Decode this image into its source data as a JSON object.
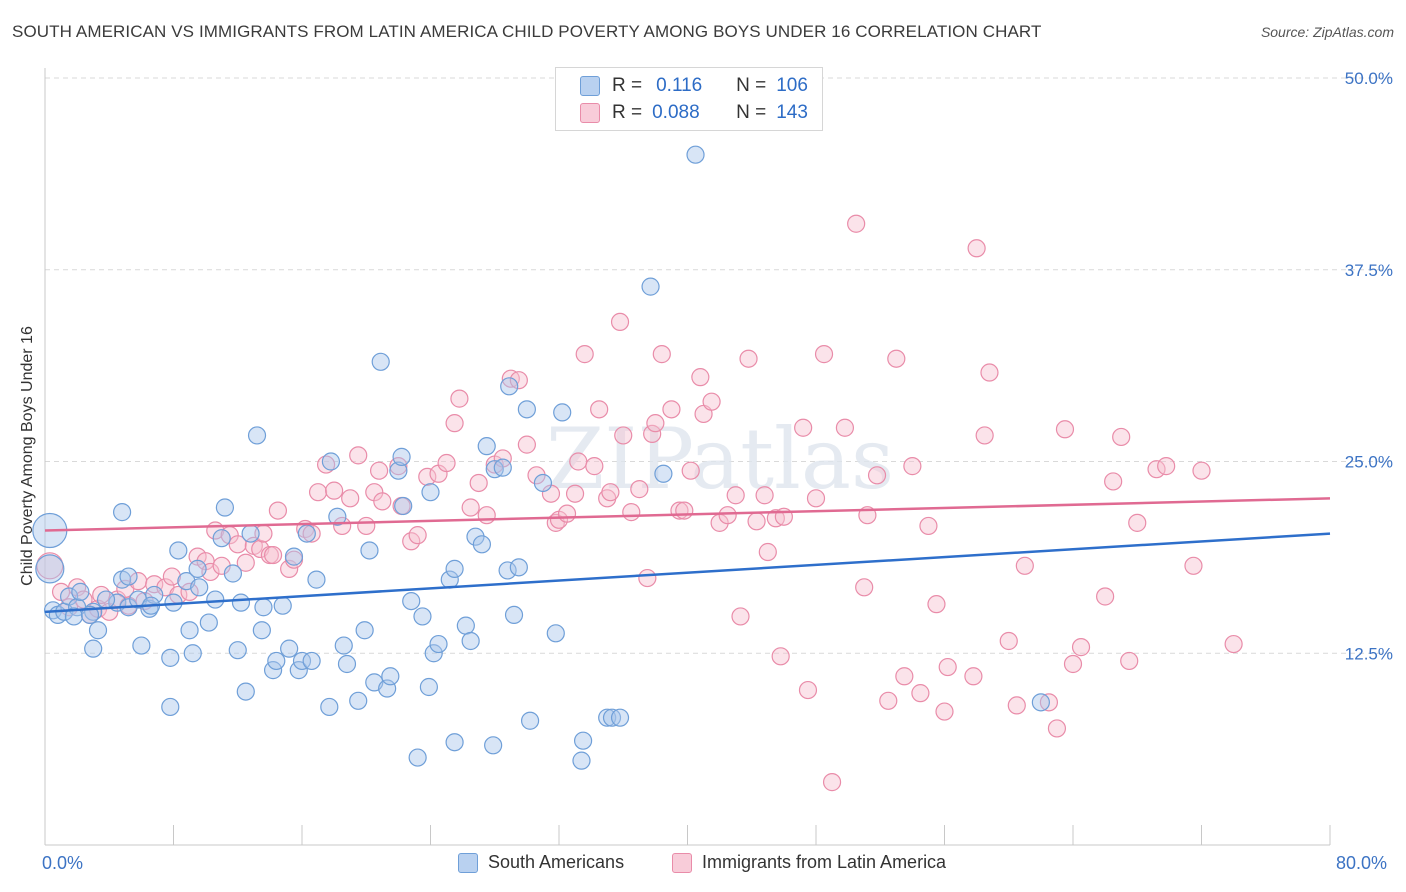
{
  "title": "SOUTH AMERICAN VS IMMIGRANTS FROM LATIN AMERICA CHILD POVERTY AMONG BOYS UNDER 16 CORRELATION CHART",
  "source": "Source: ZipAtlas.com",
  "watermark": "ZIPatlas",
  "colors": {
    "blue_fill": "#a9c6ec",
    "blue_stroke": "#6f9fd8",
    "blue_line": "#2e6fcb",
    "pink_fill": "#f6c1d1",
    "pink_stroke": "#e98ca9",
    "pink_line": "#e06a92",
    "tick_label": "#3c73c4",
    "grid": "#d9d9d9"
  },
  "legend": {
    "rows": [
      {
        "r_label": "R =",
        "r_value": "0.116",
        "n_label": "N =",
        "n_value": "106"
      },
      {
        "r_label": "R =",
        "r_value": "0.088",
        "n_label": "N =",
        "n_value": "143"
      }
    ]
  },
  "bottom_legend": {
    "series1": "South Americans",
    "series2": "Immigrants from Latin America"
  },
  "chart_data": {
    "type": "scatter",
    "title": "SOUTH AMERICAN VS IMMIGRANTS FROM LATIN AMERICA CHILD POVERTY AMONG BOYS UNDER 16 CORRELATION CHART",
    "xlabel": "",
    "ylabel": "Child Poverty Among Boys Under 16",
    "xlim": [
      0,
      80
    ],
    "ylim": [
      0,
      50
    ],
    "x_tick_labels": [
      "0.0%",
      "80.0%"
    ],
    "y_ticks": [
      12.5,
      25.0,
      37.5,
      50.0
    ],
    "y_tick_labels": [
      "12.5%",
      "25.0%",
      "37.5%",
      "50.0%"
    ],
    "grid": "horizontal dashed",
    "legend_placement": "top-center",
    "series": [
      {
        "name": "South Americans",
        "trend": [
          [
            0,
            15.2
          ],
          [
            80,
            20.3
          ]
        ],
        "points": [
          [
            0.3,
            20.5
          ],
          [
            0.3,
            18.0
          ],
          [
            0.5,
            15.3
          ],
          [
            0.8,
            15.0
          ],
          [
            1.2,
            15.2
          ],
          [
            1.5,
            16.2
          ],
          [
            2.0,
            15.5
          ],
          [
            1.8,
            14.9
          ],
          [
            2.2,
            16.5
          ],
          [
            3.0,
            15.2
          ],
          [
            3.3,
            14.0
          ],
          [
            3.0,
            12.8
          ],
          [
            4.5,
            15.8
          ],
          [
            4.8,
            17.3
          ],
          [
            5.2,
            15.5
          ],
          [
            6.0,
            13.0
          ],
          [
            5.8,
            16.0
          ],
          [
            6.5,
            15.4
          ],
          [
            6.8,
            16.3
          ],
          [
            4.8,
            21.7
          ],
          [
            8.3,
            19.2
          ],
          [
            8.8,
            17.2
          ],
          [
            9.6,
            16.8
          ],
          [
            9.0,
            14.0
          ],
          [
            9.2,
            12.5
          ],
          [
            7.8,
            12.2
          ],
          [
            7.8,
            9.0
          ],
          [
            10.2,
            14.5
          ],
          [
            10.6,
            16.0
          ],
          [
            11.0,
            20.0
          ],
          [
            11.2,
            22.0
          ],
          [
            11.7,
            17.7
          ],
          [
            12.2,
            15.8
          ],
          [
            12.0,
            12.7
          ],
          [
            12.5,
            10.0
          ],
          [
            12.8,
            20.3
          ],
          [
            13.2,
            26.7
          ],
          [
            13.5,
            14.0
          ],
          [
            13.6,
            15.5
          ],
          [
            14.2,
            11.4
          ],
          [
            14.4,
            12.0
          ],
          [
            14.8,
            15.6
          ],
          [
            15.2,
            12.8
          ],
          [
            15.8,
            11.4
          ],
          [
            16.0,
            12.0
          ],
          [
            16.6,
            12.0
          ],
          [
            15.5,
            18.8
          ],
          [
            16.3,
            20.3
          ],
          [
            16.9,
            17.3
          ],
          [
            17.7,
            9.0
          ],
          [
            17.8,
            25.0
          ],
          [
            18.2,
            21.4
          ],
          [
            18.6,
            13.0
          ],
          [
            18.8,
            11.8
          ],
          [
            19.5,
            9.4
          ],
          [
            19.9,
            14.0
          ],
          [
            20.2,
            19.2
          ],
          [
            20.5,
            10.6
          ],
          [
            20.9,
            31.5
          ],
          [
            21.3,
            10.2
          ],
          [
            21.5,
            11.0
          ],
          [
            22.0,
            24.4
          ],
          [
            22.2,
            25.3
          ],
          [
            22.3,
            22.1
          ],
          [
            22.8,
            15.9
          ],
          [
            23.2,
            5.7
          ],
          [
            23.5,
            14.9
          ],
          [
            23.9,
            10.3
          ],
          [
            24.0,
            23.0
          ],
          [
            24.2,
            12.5
          ],
          [
            24.5,
            13.1
          ],
          [
            25.5,
            6.7
          ],
          [
            25.2,
            17.3
          ],
          [
            25.5,
            18.0
          ],
          [
            26.2,
            14.3
          ],
          [
            26.5,
            13.3
          ],
          [
            26.8,
            20.1
          ],
          [
            27.2,
            19.6
          ],
          [
            27.5,
            26.0
          ],
          [
            27.9,
            6.5
          ],
          [
            28.0,
            24.5
          ],
          [
            28.5,
            24.6
          ],
          [
            28.8,
            17.9
          ],
          [
            28.9,
            29.9
          ],
          [
            29.2,
            15.0
          ],
          [
            29.5,
            18.1
          ],
          [
            30.2,
            8.1
          ],
          [
            30.0,
            28.4
          ],
          [
            31.0,
            23.6
          ],
          [
            31.8,
            13.8
          ],
          [
            32.2,
            28.2
          ],
          [
            33.5,
            6.8
          ],
          [
            33.4,
            5.5
          ],
          [
            35.0,
            8.3
          ],
          [
            35.3,
            8.3
          ],
          [
            35.8,
            8.3
          ],
          [
            38.5,
            24.2
          ],
          [
            40.5,
            45.0
          ],
          [
            37.7,
            36.4
          ],
          [
            62.0,
            9.3
          ],
          [
            5.2,
            17.5
          ],
          [
            9.5,
            18.0
          ],
          [
            8.0,
            15.8
          ],
          [
            3.8,
            16.0
          ],
          [
            2.8,
            15.0
          ],
          [
            6.6,
            15.6
          ]
        ]
      },
      {
        "name": "Immigrants from Latin America",
        "trend": [
          [
            0,
            20.5
          ],
          [
            80,
            22.6
          ]
        ],
        "points": [
          [
            0.3,
            18.2
          ],
          [
            1.0,
            16.5
          ],
          [
            1.5,
            15.5
          ],
          [
            2.0,
            16.8
          ],
          [
            2.4,
            16.0
          ],
          [
            2.8,
            15.0
          ],
          [
            3.3,
            15.4
          ],
          [
            3.5,
            16.3
          ],
          [
            4.0,
            15.2
          ],
          [
            4.5,
            16.0
          ],
          [
            5.0,
            16.7
          ],
          [
            5.2,
            15.6
          ],
          [
            5.8,
            17.2
          ],
          [
            6.2,
            15.9
          ],
          [
            6.8,
            17.0
          ],
          [
            7.5,
            16.8
          ],
          [
            7.9,
            17.5
          ],
          [
            8.3,
            16.3
          ],
          [
            9.0,
            16.5
          ],
          [
            9.5,
            18.8
          ],
          [
            10.0,
            18.5
          ],
          [
            10.3,
            17.8
          ],
          [
            10.6,
            20.5
          ],
          [
            11.0,
            18.2
          ],
          [
            11.5,
            20.2
          ],
          [
            12.0,
            19.6
          ],
          [
            12.5,
            18.4
          ],
          [
            13.0,
            19.5
          ],
          [
            13.4,
            19.3
          ],
          [
            13.6,
            20.3
          ],
          [
            14.0,
            18.9
          ],
          [
            14.2,
            18.9
          ],
          [
            14.5,
            21.8
          ],
          [
            15.2,
            18.0
          ],
          [
            15.5,
            18.6
          ],
          [
            16.2,
            20.6
          ],
          [
            16.6,
            20.3
          ],
          [
            17.0,
            23.0
          ],
          [
            17.5,
            24.8
          ],
          [
            18.0,
            23.1
          ],
          [
            18.5,
            20.8
          ],
          [
            19.0,
            22.6
          ],
          [
            19.5,
            25.4
          ],
          [
            20.0,
            20.8
          ],
          [
            20.5,
            23.0
          ],
          [
            20.8,
            24.4
          ],
          [
            21.0,
            22.4
          ],
          [
            22.0,
            24.7
          ],
          [
            22.2,
            22.1
          ],
          [
            22.8,
            19.8
          ],
          [
            23.2,
            20.2
          ],
          [
            23.8,
            24.0
          ],
          [
            24.5,
            24.2
          ],
          [
            25.0,
            24.9
          ],
          [
            25.5,
            27.5
          ],
          [
            25.8,
            29.1
          ],
          [
            26.5,
            22.0
          ],
          [
            27.0,
            23.6
          ],
          [
            27.5,
            21.5
          ],
          [
            28.0,
            24.8
          ],
          [
            28.5,
            25.2
          ],
          [
            29.0,
            30.4
          ],
          [
            29.5,
            30.3
          ],
          [
            30.0,
            26.1
          ],
          [
            30.6,
            24.1
          ],
          [
            31.5,
            22.9
          ],
          [
            31.8,
            21.0
          ],
          [
            32.0,
            21.2
          ],
          [
            32.5,
            21.6
          ],
          [
            33.0,
            22.9
          ],
          [
            33.2,
            25.0
          ],
          [
            33.6,
            32.0
          ],
          [
            34.2,
            24.7
          ],
          [
            34.5,
            28.4
          ],
          [
            35.0,
            22.6
          ],
          [
            35.2,
            23.0
          ],
          [
            35.8,
            34.1
          ],
          [
            36.0,
            26.7
          ],
          [
            36.5,
            21.7
          ],
          [
            37.0,
            23.2
          ],
          [
            37.5,
            17.4
          ],
          [
            37.8,
            26.8
          ],
          [
            38.0,
            27.5
          ],
          [
            38.4,
            32.0
          ],
          [
            39.0,
            28.4
          ],
          [
            39.5,
            21.8
          ],
          [
            39.8,
            21.8
          ],
          [
            40.2,
            24.4
          ],
          [
            40.8,
            30.5
          ],
          [
            41.0,
            28.1
          ],
          [
            41.5,
            28.9
          ],
          [
            42.0,
            21.0
          ],
          [
            42.5,
            21.5
          ],
          [
            43.0,
            22.8
          ],
          [
            43.3,
            14.9
          ],
          [
            43.8,
            31.7
          ],
          [
            44.3,
            21.1
          ],
          [
            44.8,
            22.8
          ],
          [
            45.0,
            19.1
          ],
          [
            45.5,
            21.3
          ],
          [
            45.8,
            12.3
          ],
          [
            46.0,
            21.4
          ],
          [
            47.5,
            10.1
          ],
          [
            47.2,
            27.2
          ],
          [
            48.0,
            22.6
          ],
          [
            48.5,
            32.0
          ],
          [
            49.0,
            4.1
          ],
          [
            49.8,
            27.2
          ],
          [
            50.5,
            40.5
          ],
          [
            51.0,
            16.8
          ],
          [
            51.2,
            21.5
          ],
          [
            51.8,
            24.1
          ],
          [
            52.5,
            9.4
          ],
          [
            53.0,
            31.7
          ],
          [
            53.5,
            11.0
          ],
          [
            54.0,
            24.7
          ],
          [
            54.5,
            9.9
          ],
          [
            55.0,
            20.8
          ],
          [
            55.5,
            15.7
          ],
          [
            56.0,
            8.7
          ],
          [
            56.2,
            11.6
          ],
          [
            57.8,
            11.0
          ],
          [
            58.5,
            26.7
          ],
          [
            58.8,
            30.8
          ],
          [
            60.0,
            13.3
          ],
          [
            60.5,
            9.1
          ],
          [
            61.0,
            18.2
          ],
          [
            62.5,
            9.3
          ],
          [
            63.0,
            7.6
          ],
          [
            63.5,
            27.1
          ],
          [
            64.0,
            11.8
          ],
          [
            64.5,
            12.9
          ],
          [
            66.0,
            16.2
          ],
          [
            67.0,
            26.6
          ],
          [
            68.0,
            21.0
          ],
          [
            69.2,
            24.5
          ],
          [
            69.8,
            24.7
          ],
          [
            71.5,
            18.2
          ],
          [
            72.0,
            24.4
          ],
          [
            74.0,
            13.1
          ],
          [
            67.5,
            12.0
          ],
          [
            58.0,
            38.9
          ],
          [
            66.5,
            23.7
          ]
        ]
      }
    ]
  }
}
